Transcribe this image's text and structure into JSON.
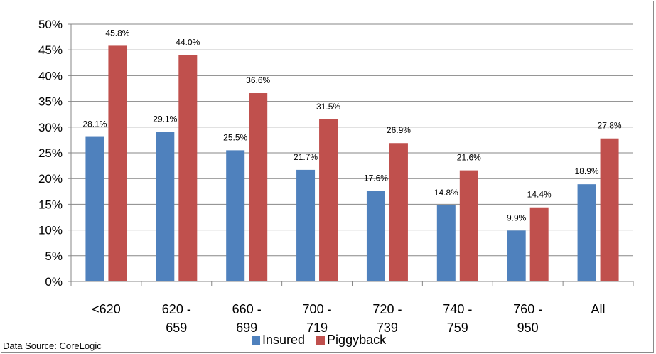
{
  "chart_data": {
    "type": "bar",
    "categories": [
      [
        "<620"
      ],
      [
        "620 -",
        "659"
      ],
      [
        "660 -",
        "699"
      ],
      [
        "700 -",
        "719"
      ],
      [
        "720 -",
        "739"
      ],
      [
        "740 -",
        "759"
      ],
      [
        "760 -",
        "950"
      ],
      [
        "All"
      ]
    ],
    "series": [
      {
        "name": "Insured",
        "color": "#4f81bd",
        "values": [
          28.1,
          29.1,
          25.5,
          21.7,
          17.6,
          14.8,
          9.9,
          18.9
        ],
        "labels": [
          "28.1%",
          "29.1%",
          "25.5%",
          "21.7%",
          "17.6%",
          "14.8%",
          "9.9%",
          "18.9%"
        ]
      },
      {
        "name": "Piggyback",
        "color": "#c0504d",
        "values": [
          45.8,
          44.0,
          36.6,
          31.5,
          26.9,
          21.6,
          14.4,
          27.8
        ],
        "labels": [
          "45.8%",
          "44.0%",
          "36.6%",
          "31.5%",
          "26.9%",
          "21.6%",
          "14.4%",
          "27.8%"
        ]
      }
    ],
    "y_ticks": [
      {
        "value": 0,
        "label": "0%"
      },
      {
        "value": 5,
        "label": "5%"
      },
      {
        "value": 10,
        "label": "10%"
      },
      {
        "value": 15,
        "label": "15%"
      },
      {
        "value": 20,
        "label": "20%"
      },
      {
        "value": 25,
        "label": "25%"
      },
      {
        "value": 30,
        "label": "30%"
      },
      {
        "value": 35,
        "label": "35%"
      },
      {
        "value": 40,
        "label": "40%"
      },
      {
        "value": 45,
        "label": "45%"
      },
      {
        "value": 50,
        "label": "50%"
      }
    ],
    "ylim": [
      0,
      50
    ],
    "grid": true,
    "gridline_color": "#878787",
    "legend_position": "bottom",
    "title": "",
    "xlabel": "",
    "ylabel": ""
  },
  "source_note": "Data Source: CoreLogic"
}
